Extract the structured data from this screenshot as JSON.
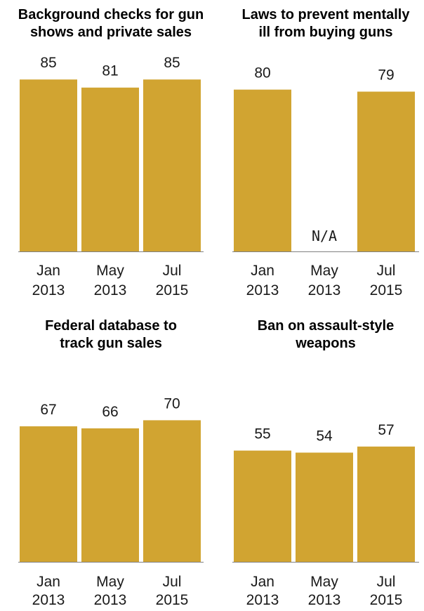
{
  "colors": {
    "bar": "#D1A431",
    "axis": "#808080",
    "text": "#1a1a1a"
  },
  "chart_data": [
    {
      "type": "bar",
      "title": [
        "Background checks for gun",
        "shows and private sales"
      ],
      "categories": [
        [
          "Jan",
          "2013"
        ],
        [
          "May",
          "2013"
        ],
        [
          "Jul",
          "2015"
        ]
      ],
      "values": [
        85,
        81,
        85
      ],
      "value_labels": [
        "85",
        "81",
        "85"
      ],
      "ylim": [
        0,
        100
      ]
    },
    {
      "type": "bar",
      "title": [
        "Laws to prevent mentally",
        "ill from buying guns"
      ],
      "categories": [
        [
          "Jan",
          "2013"
        ],
        [
          "May",
          "2013"
        ],
        [
          "Jul",
          "2015"
        ]
      ],
      "values": [
        80,
        null,
        79
      ],
      "value_labels": [
        "80",
        "N/A",
        "79"
      ],
      "ylim": [
        0,
        100
      ]
    },
    {
      "type": "bar",
      "title": [
        "Federal database to",
        "track gun sales"
      ],
      "categories": [
        [
          "Jan",
          "2013"
        ],
        [
          "May",
          "2013"
        ],
        [
          "Jul",
          "2015"
        ]
      ],
      "values": [
        67,
        66,
        70
      ],
      "value_labels": [
        "67",
        "66",
        "70"
      ],
      "ylim": [
        0,
        100
      ]
    },
    {
      "type": "bar",
      "title": [
        "Ban on assault-style",
        "weapons"
      ],
      "categories": [
        [
          "Jan",
          "2013"
        ],
        [
          "May",
          "2013"
        ],
        [
          "Jul",
          "2015"
        ]
      ],
      "values": [
        55,
        54,
        57
      ],
      "value_labels": [
        "55",
        "54",
        "57"
      ],
      "ylim": [
        0,
        100
      ]
    }
  ]
}
